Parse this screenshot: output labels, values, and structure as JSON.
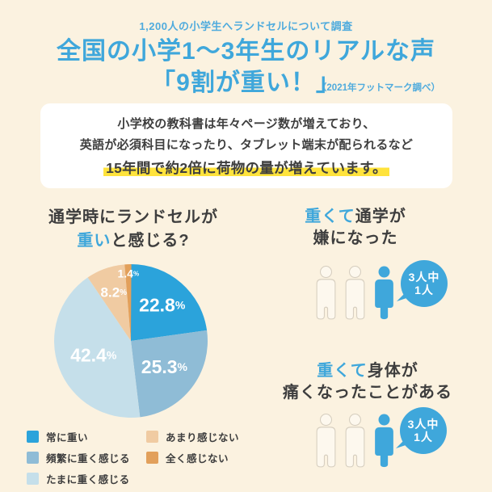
{
  "header": {
    "survey_note": "1,200人の小学生へランドセルについて調査",
    "title_line1": "全国の小学1〜3年生のリアルな声",
    "title_line2": "「9割が重い！」",
    "source_note": "（2021年フットマーク調べ）"
  },
  "info_box": {
    "line1": "小学校の教科書は年々ページ数が増えており、",
    "line2": "英語が必須科目になったり、タブレット端末が配られるなど",
    "line3_highlight": "15年間で約2倍に荷物の量が増えています。"
  },
  "pie_section": {
    "question_line1": "通学時にランドセルが",
    "question_line2_blue": "重い",
    "question_line2_rest": "と感じる?"
  },
  "chart_data": {
    "type": "pie",
    "title": "通学時にランドセルが重いと感じる?",
    "labels": [
      "常に重い",
      "頻繁に重く感じる",
      "たまに重く感じる",
      "あまり感じない",
      "全く感じない"
    ],
    "values": [
      22.8,
      25.3,
      42.4,
      8.2,
      1.4
    ],
    "unit": "%",
    "colors": [
      "#2BA3DB",
      "#8FBCD6",
      "#C5DFEA",
      "#F0CBA2",
      "#E2A05B"
    ],
    "start_angle": "top",
    "direction": "clockwise",
    "legend_position": "bottom-left, two columns"
  },
  "stats": [
    {
      "heading_blue": "重くて",
      "heading_rest_line1": "通学が",
      "heading_line2": "嫌になった",
      "bubble_line1": "3人中",
      "bubble_line2": "1人",
      "total_figures": 3,
      "highlighted_figures": 1
    },
    {
      "heading_blue": "重くて",
      "heading_rest_line1": "身体が",
      "heading_line2": "痛くなったことがある",
      "bubble_line1": "3人中",
      "bubble_line2": "1人",
      "total_figures": 3,
      "highlighted_figures": 1
    }
  ],
  "colors": {
    "background": "#FBF2E0",
    "accent_blue": "#3FA7DB",
    "accent_blue_light": "#4FABDD",
    "text_dark": "#3E3E3E",
    "highlight_yellow": "#FFE33C",
    "card_background": "#FFFFFF",
    "figure_outline": "#D5CDBE"
  }
}
